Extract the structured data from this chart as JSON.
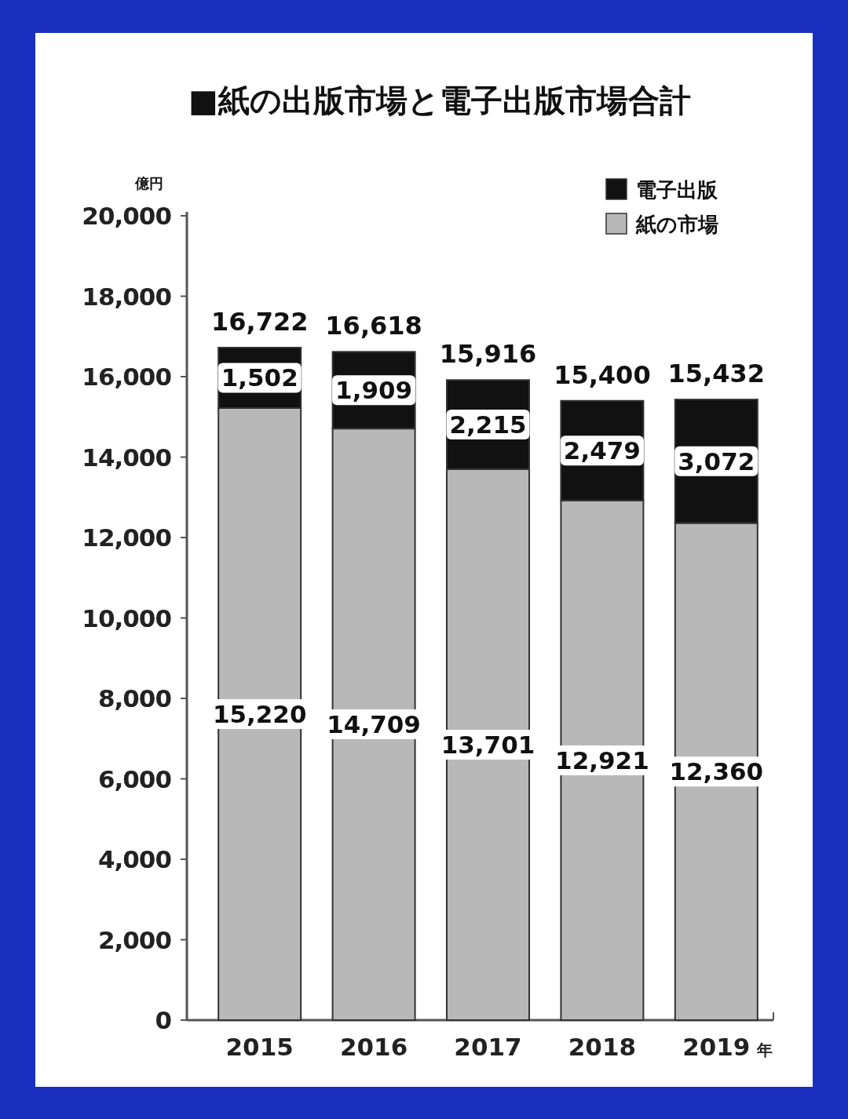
{
  "chart_data": {
    "type": "bar",
    "title": "■紙の出版市場と電子出版市場合計",
    "ylabel": "億円",
    "xlabel": "年",
    "categories": [
      "2015",
      "2016",
      "2017",
      "2018",
      "2019"
    ],
    "series": [
      {
        "name": "紙の市場",
        "color": "#b8b8b8",
        "values": [
          15220,
          14709,
          13701,
          12921,
          12360
        ],
        "value_labels": [
          "15,220",
          "14,709",
          "13,701",
          "12,921",
          "12,360"
        ]
      },
      {
        "name": "電子出版",
        "color": "#111111",
        "values": [
          1502,
          1909,
          2215,
          2479,
          3072
        ],
        "value_labels": [
          "1,502",
          "1,909",
          "2,215",
          "2,479",
          "3,072"
        ]
      }
    ],
    "stacked": true,
    "ylim": [
      0,
      20000
    ],
    "yticks": [
      {
        "value": 0,
        "label": "0"
      },
      {
        "value": 2000,
        "label": "2,000"
      },
      {
        "value": 4000,
        "label": "4,000"
      },
      {
        "value": 6000,
        "label": "6,000"
      },
      {
        "value": 8000,
        "label": "8,000"
      },
      {
        "value": 10000,
        "label": "10,000"
      },
      {
        "value": 12000,
        "label": "12,000"
      },
      {
        "value": 14000,
        "label": "14,000"
      },
      {
        "value": 16000,
        "label": "16,000"
      },
      {
        "value": 18000,
        "label": "18,000"
      },
      {
        "value": 20000,
        "label": "20,000"
      }
    ],
    "legend": "top right",
    "totals": [
      "16,722",
      "16,618",
      "15,916",
      "15,400",
      "15,432"
    ]
  }
}
